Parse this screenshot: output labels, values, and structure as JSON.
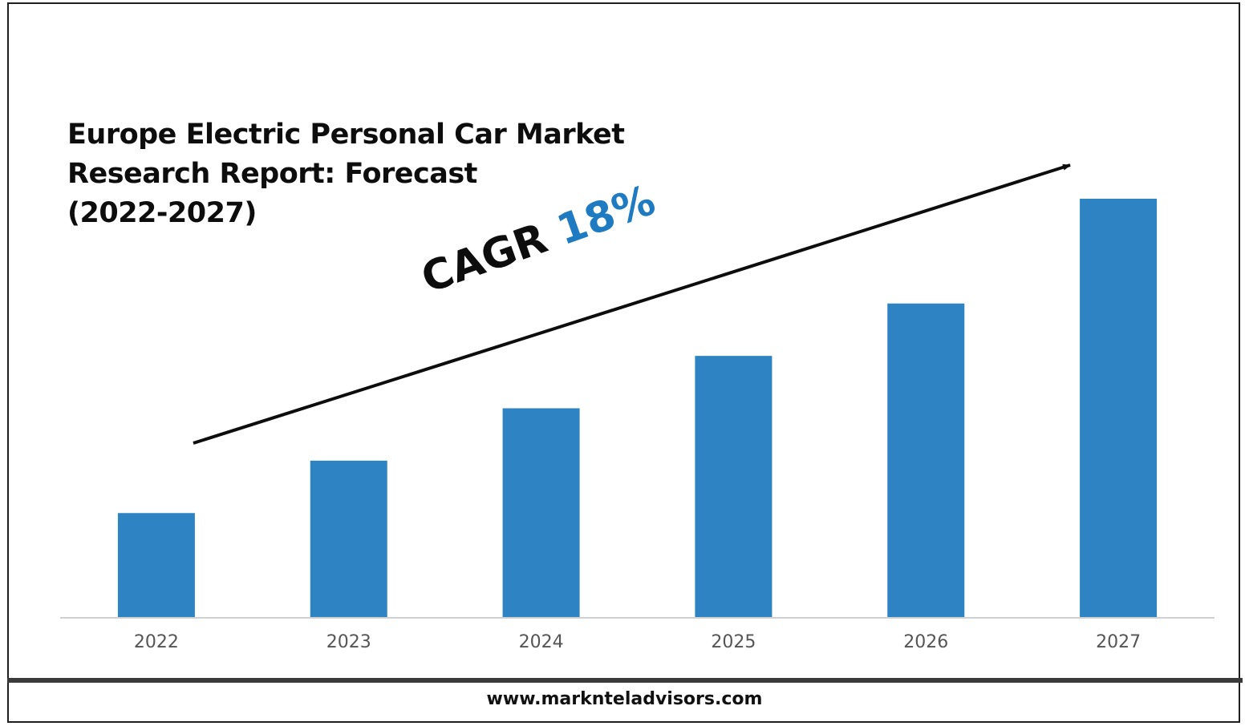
{
  "chart_data": {
    "type": "bar",
    "title": "Europe Electric Personal Car Market Research Report: Forecast (2022-2027)",
    "title_lines": [
      "Europe Electric Personal Car Market",
      "Research Report: Forecast",
      "(2022-2027)"
    ],
    "categories": [
      "2022",
      "2023",
      "2024",
      "2025",
      "2026",
      "2027"
    ],
    "values": [
      1.0,
      1.5,
      2.0,
      2.5,
      3.0,
      4.0
    ],
    "values_note": "relative bar heights",
    "ylim": [
      0,
      4.0
    ],
    "bar_color": "#2e83c3",
    "annotation": {
      "label": "CAGR",
      "value": "18%",
      "label_color": "#0d0d0d",
      "value_color": "#1f7bc1"
    },
    "grid": false,
    "legend": "none"
  },
  "footer": {
    "url": "www.marknteladvisors.com"
  }
}
